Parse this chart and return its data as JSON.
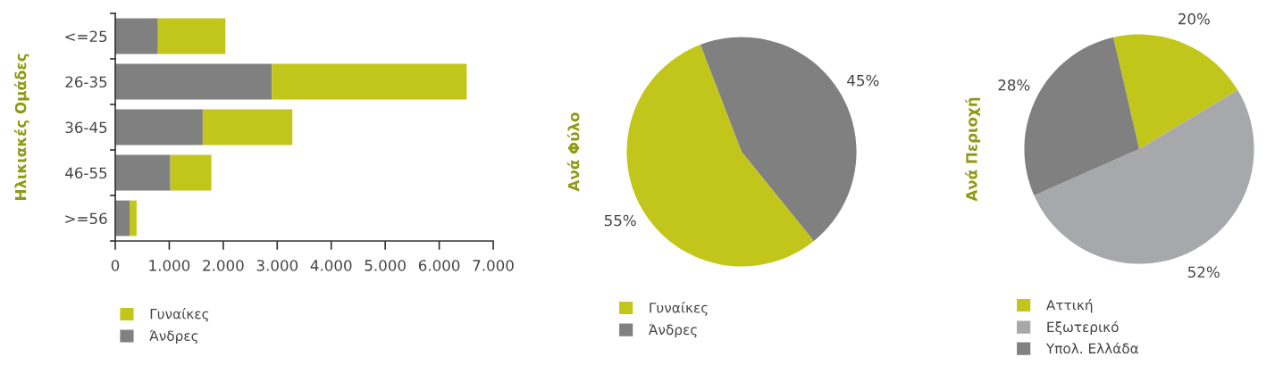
{
  "chart_data": [
    {
      "type": "bar",
      "orientation": "horizontal",
      "stacked": true,
      "ylabel": "Ηλικιακές Ομάδες",
      "categories": [
        "<=25",
        "26-35",
        "36-45",
        "46-55",
        ">=56"
      ],
      "series": [
        {
          "name": "Άνδρες",
          "color": "#808080",
          "values": [
            790,
            2900,
            1620,
            1020,
            265
          ]
        },
        {
          "name": "Γυναίκες",
          "color": "#c3c61a",
          "values": [
            1250,
            3610,
            1660,
            760,
            130
          ]
        }
      ],
      "xlim": [
        0,
        7000
      ],
      "xticks": [
        0,
        {
          "value": 1000,
          "label": "1.000"
        },
        {
          "value": 2000,
          "label": "2.000"
        },
        {
          "value": 3000,
          "label": "3.000"
        },
        {
          "value": 4000,
          "label": "4.000"
        },
        {
          "value": 5000,
          "label": "5.000"
        },
        {
          "value": 6000,
          "label": "6.000"
        },
        {
          "value": 7000,
          "label": "7.000"
        }
      ],
      "grid": false,
      "legend": "bottom left"
    },
    {
      "type": "pie",
      "ylabel": "Ανά Φύλο",
      "categories": [
        "Γυναίκες",
        "Άνδρες"
      ],
      "values": [
        55,
        45
      ],
      "colors": [
        "#c3c61a",
        "#808080"
      ],
      "value_labels": [
        "55%",
        "45%"
      ],
      "legend": "bottom left"
    },
    {
      "type": "pie",
      "ylabel": "Ανά Περιοχή",
      "categories": [
        "Αττική",
        "Εξωτερικό",
        "Υπολ. Ελλάδα"
      ],
      "values": [
        20,
        52,
        28
      ],
      "colors": [
        "#c3c61a",
        "#a7a8ab",
        "#808080"
      ],
      "value_labels": [
        "20%",
        "52%",
        "28%"
      ],
      "legend": "bottom left"
    }
  ]
}
